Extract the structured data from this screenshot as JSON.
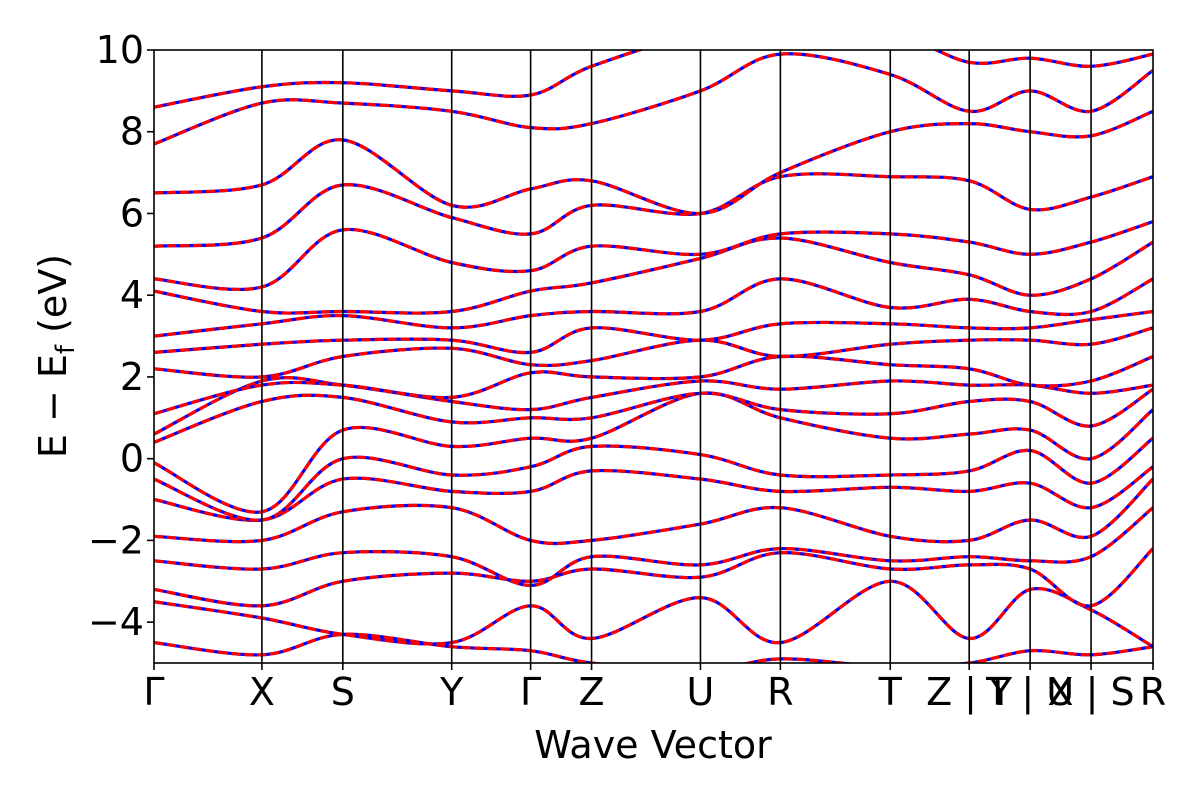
{
  "chart_data": {
    "type": "line",
    "title": "",
    "xlabel": "Wave Vector",
    "ylabel_main": "E − E",
    "ylabel_sub": "f",
    "ylabel_unit": " (eV)",
    "ylim": [
      -5,
      10
    ],
    "yticks": [
      -4,
      -2,
      0,
      2,
      4,
      6,
      8,
      10
    ],
    "ytick_labels": [
      "−4",
      "−2",
      "0",
      "2",
      "4",
      "6",
      "8",
      "10"
    ],
    "grid": false,
    "legend": "none",
    "kpath_ticks": [
      {
        "label": "Γ",
        "pos": 0.0
      },
      {
        "label": "X",
        "pos": 0.108
      },
      {
        "label": "S",
        "pos": 0.189
      },
      {
        "label": "Y",
        "pos": 0.298
      },
      {
        "label": "Γ",
        "pos": 0.377
      },
      {
        "label": "Z",
        "pos": 0.438
      },
      {
        "label": "U",
        "pos": 0.547
      },
      {
        "label": "R",
        "pos": 0.627
      },
      {
        "label": "T",
        "pos": 0.737
      },
      {
        "label": "Z | Y",
        "pos": 0.816
      },
      {
        "label": "T | U",
        "pos": 0.877
      },
      {
        "label": "X | S",
        "pos": 0.938
      },
      {
        "label": "R",
        "pos": 1.0
      }
    ],
    "series": [
      {
        "color": "#0000ff",
        "style": "solid"
      },
      {
        "color": "#ff0000",
        "style": "dashed"
      }
    ],
    "bands": [
      [
        -4.5,
        -4.8,
        -4.3,
        -4.6,
        -4.7,
        -5.0,
        -5.2,
        -4.9,
        -5.1,
        -5.0,
        -4.7,
        -4.8,
        -4.6
      ],
      [
        -3.5,
        -3.9,
        -4.3,
        -4.5,
        -3.6,
        -4.4,
        -3.4,
        -4.5,
        -3.0,
        -4.4,
        -3.2,
        -3.7,
        -4.6
      ],
      [
        -3.2,
        -3.6,
        -3.0,
        -2.8,
        -3.0,
        -2.7,
        -2.9,
        -2.3,
        -2.7,
        -2.6,
        -2.7,
        -3.6,
        -2.2
      ],
      [
        -2.5,
        -2.7,
        -2.3,
        -2.4,
        -3.1,
        -2.4,
        -2.6,
        -2.2,
        -2.5,
        -2.4,
        -2.5,
        -2.4,
        -1.2
      ],
      [
        -1.9,
        -2.0,
        -1.3,
        -1.2,
        -2.0,
        -2.0,
        -1.6,
        -1.2,
        -1.9,
        -2.0,
        -1.5,
        -1.9,
        -0.5
      ],
      [
        -1.0,
        -1.5,
        -0.5,
        -0.8,
        -0.8,
        -0.3,
        -0.5,
        -0.8,
        -0.7,
        -0.8,
        -0.6,
        -1.2,
        -0.2
      ],
      [
        -0.5,
        -1.5,
        0.0,
        -0.4,
        -0.2,
        0.3,
        0.1,
        -0.4,
        -0.4,
        -0.3,
        0.2,
        -0.6,
        0.5
      ],
      [
        -0.1,
        -1.3,
        0.7,
        0.3,
        0.5,
        0.5,
        1.6,
        1.0,
        0.5,
        0.6,
        0.7,
        0.0,
        1.2
      ],
      [
        0.4,
        1.4,
        1.5,
        0.9,
        1.0,
        1.0,
        1.6,
        1.2,
        1.1,
        1.4,
        1.4,
        0.8,
        1.7
      ],
      [
        0.6,
        1.9,
        1.8,
        1.4,
        1.2,
        1.5,
        1.9,
        1.7,
        1.9,
        1.8,
        1.8,
        1.6,
        1.8
      ],
      [
        1.1,
        1.8,
        1.8,
        1.5,
        2.1,
        2.0,
        2.0,
        2.5,
        2.3,
        2.2,
        1.8,
        1.9,
        2.5
      ],
      [
        2.2,
        2.0,
        2.5,
        2.7,
        2.3,
        2.4,
        2.9,
        2.5,
        2.8,
        2.9,
        2.9,
        2.8,
        3.2
      ],
      [
        2.6,
        2.8,
        2.9,
        2.9,
        2.6,
        3.2,
        2.9,
        3.3,
        3.3,
        3.2,
        3.2,
        3.4,
        3.6
      ],
      [
        3.0,
        3.3,
        3.5,
        3.2,
        3.5,
        3.6,
        3.6,
        4.4,
        3.7,
        3.9,
        3.6,
        3.6,
        4.4
      ],
      [
        4.1,
        3.6,
        3.6,
        3.6,
        4.1,
        4.3,
        4.9,
        5.4,
        4.8,
        4.5,
        4.0,
        4.4,
        5.3
      ],
      [
        4.4,
        4.2,
        5.6,
        4.8,
        4.6,
        5.2,
        5.0,
        5.5,
        5.5,
        5.3,
        5.0,
        5.3,
        5.8
      ],
      [
        5.2,
        5.4,
        6.7,
        5.9,
        5.5,
        6.2,
        6.0,
        6.9,
        6.9,
        6.8,
        6.1,
        6.4,
        6.9
      ],
      [
        6.5,
        6.7,
        7.8,
        6.2,
        6.6,
        6.8,
        6.0,
        7.0,
        8.0,
        8.2,
        8.0,
        7.9,
        8.5
      ],
      [
        7.7,
        8.7,
        8.7,
        8.5,
        8.1,
        8.2,
        9.0,
        9.9,
        9.4,
        8.5,
        9.0,
        8.5,
        9.5
      ],
      [
        8.6,
        9.1,
        9.2,
        9.0,
        8.9,
        9.6,
        10.4,
        10.4,
        10.4,
        9.7,
        9.8,
        9.6,
        9.9
      ]
    ]
  }
}
